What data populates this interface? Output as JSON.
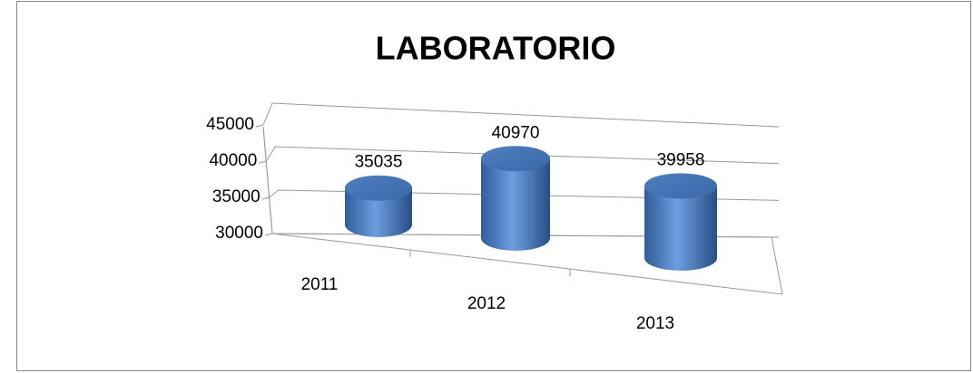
{
  "chart_data": {
    "type": "cylinder",
    "title": "LABORATORIO",
    "categories": [
      "2011",
      "2012",
      "2013"
    ],
    "values": [
      35035,
      40970,
      39958
    ],
    "color": "#4f81bd",
    "ylim": [
      30000,
      45000
    ],
    "yticks": [
      30000,
      35000,
      40000,
      45000
    ],
    "grid": true
  }
}
